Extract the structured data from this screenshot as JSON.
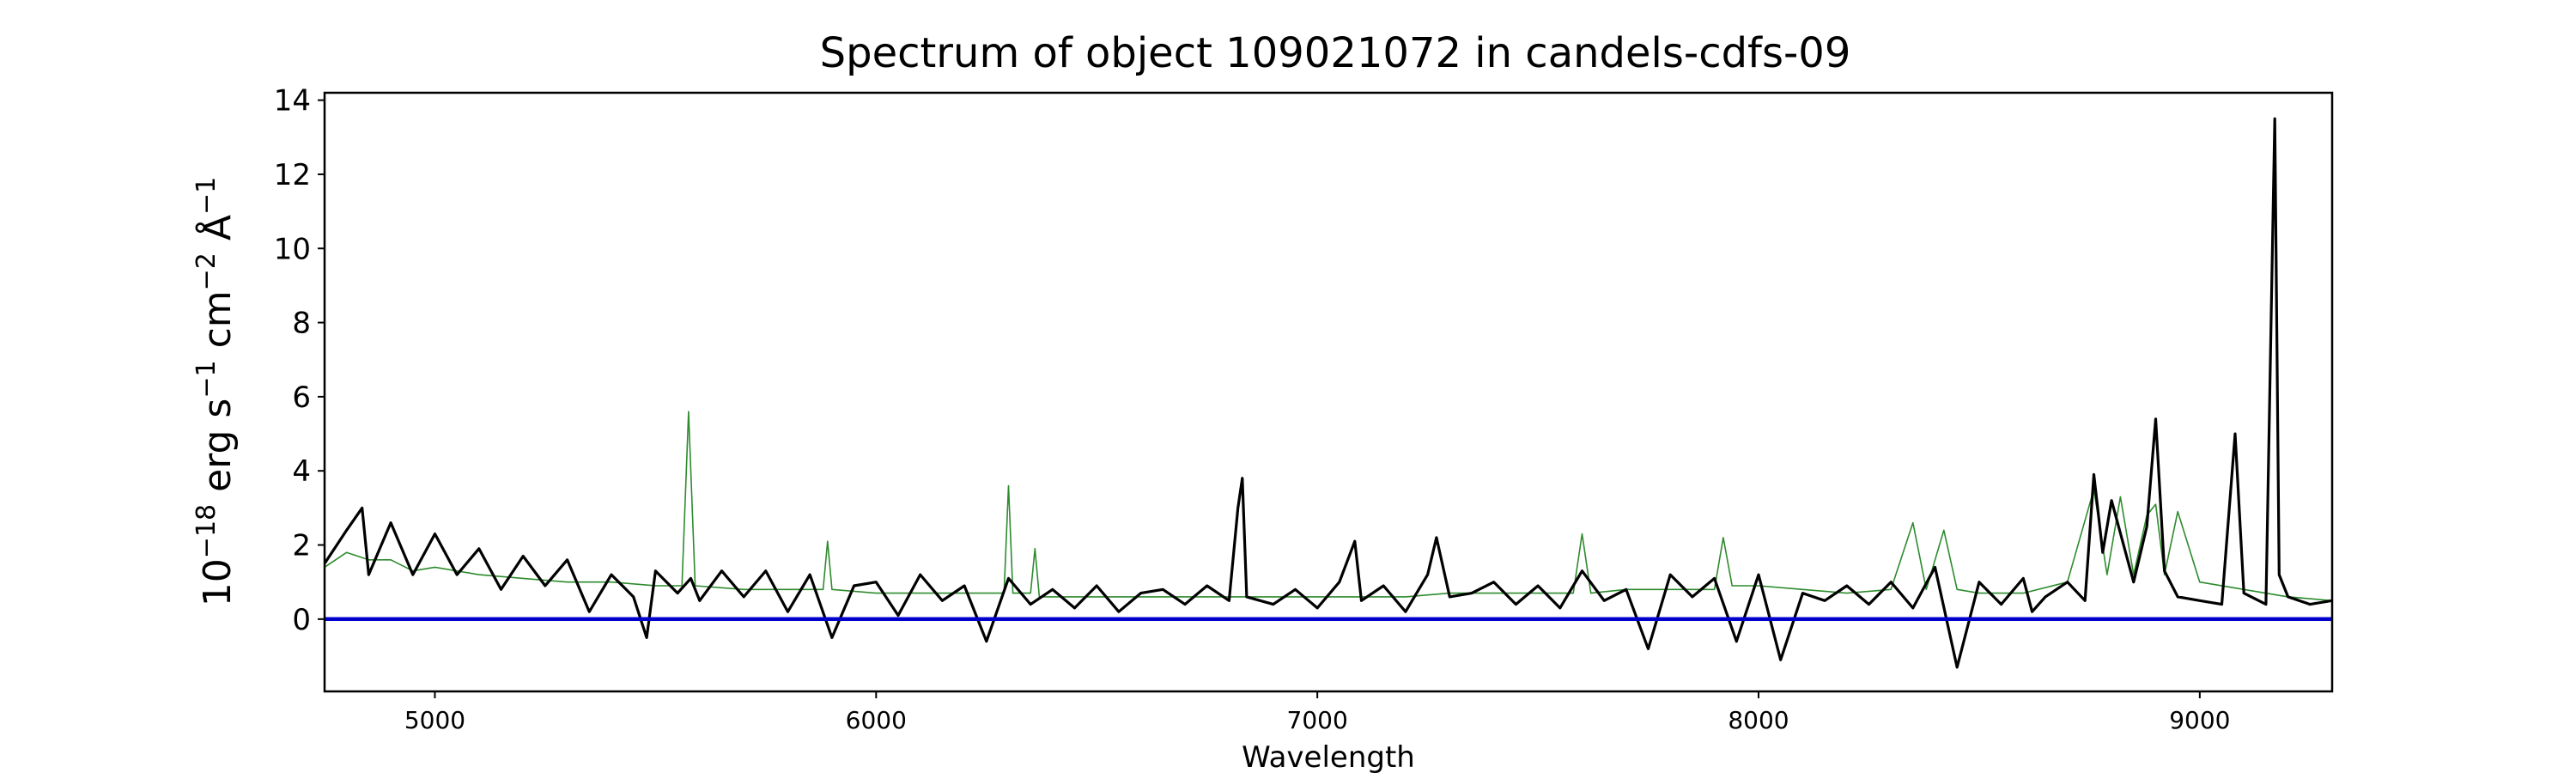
{
  "chart_data": {
    "type": "line",
    "title": "Spectrum of object 109021072 in candels-cdfs-09",
    "xlabel": "Wavelength",
    "ylabel": {
      "base": "10",
      "exp1": "−18",
      "erg": " erg s",
      "exp2": "−1",
      "cm": " cm",
      "exp3": "−2",
      "ang": " Å",
      "exp4": "−1"
    },
    "xlim": [
      4750,
      9300
    ],
    "ylim": [
      -1.95,
      14.2
    ],
    "x_ticks": [
      5000,
      6000,
      7000,
      8000,
      9000
    ],
    "y_ticks": [
      0,
      2,
      4,
      6,
      8,
      10,
      12,
      14
    ],
    "grid": false,
    "colors": {
      "spectrum": "#000000",
      "model": "#2e8b2e",
      "zero": "#0000cc"
    },
    "series": [
      {
        "key": "spectrum",
        "style": "black-thick",
        "x": [
          4750,
          4800,
          4835,
          4850,
          4900,
          4950,
          5000,
          5050,
          5100,
          5150,
          5200,
          5250,
          5300,
          5350,
          5400,
          5450,
          5480,
          5500,
          5550,
          5580,
          5600,
          5650,
          5700,
          5750,
          5800,
          5850,
          5900,
          5950,
          6000,
          6050,
          6100,
          6150,
          6200,
          6250,
          6300,
          6350,
          6400,
          6450,
          6500,
          6550,
          6600,
          6650,
          6700,
          6750,
          6800,
          6820,
          6830,
          6840,
          6900,
          6950,
          7000,
          7050,
          7085,
          7100,
          7150,
          7200,
          7250,
          7270,
          7300,
          7350,
          7400,
          7450,
          7500,
          7550,
          7600,
          7650,
          7700,
          7750,
          7800,
          7850,
          7900,
          7950,
          8000,
          8050,
          8100,
          8150,
          8200,
          8250,
          8300,
          8350,
          8400,
          8450,
          8500,
          8550,
          8600,
          8620,
          8650,
          8700,
          8740,
          8760,
          8780,
          8800,
          8850,
          8880,
          8900,
          8920,
          8950,
          9000,
          9050,
          9080,
          9100,
          9150,
          9170,
          9180,
          9200,
          9250,
          9300
        ],
        "y": [
          1.5,
          2.4,
          3.0,
          1.2,
          2.6,
          1.2,
          2.3,
          1.2,
          1.9,
          0.8,
          1.7,
          0.9,
          1.6,
          0.2,
          1.2,
          0.6,
          -0.5,
          1.3,
          0.7,
          1.1,
          0.5,
          1.3,
          0.6,
          1.3,
          0.2,
          1.2,
          -0.5,
          0.9,
          1.0,
          0.1,
          1.2,
          0.5,
          0.9,
          -0.6,
          1.1,
          0.4,
          0.8,
          0.3,
          0.9,
          0.2,
          0.7,
          0.8,
          0.4,
          0.9,
          0.5,
          3.0,
          3.8,
          0.6,
          0.4,
          0.8,
          0.3,
          1.0,
          2.1,
          0.5,
          0.9,
          0.2,
          1.2,
          2.2,
          0.6,
          0.7,
          1.0,
          0.4,
          0.9,
          0.3,
          1.3,
          0.5,
          0.8,
          -0.8,
          1.2,
          0.6,
          1.1,
          -0.6,
          1.2,
          -1.1,
          0.7,
          0.5,
          0.9,
          0.4,
          1.0,
          0.3,
          1.4,
          -1.3,
          1.0,
          0.4,
          1.1,
          0.2,
          0.6,
          1.0,
          0.5,
          3.9,
          1.8,
          3.2,
          1.0,
          2.5,
          5.4,
          1.3,
          0.6,
          0.5,
          0.4,
          5.0,
          0.7,
          0.4,
          13.5,
          1.2,
          0.6,
          0.4,
          0.5
        ]
      },
      {
        "key": "model",
        "style": "green-thin",
        "x": [
          4750,
          4800,
          4850,
          4900,
          4950,
          5000,
          5100,
          5200,
          5300,
          5400,
          5500,
          5560,
          5575,
          5590,
          5700,
          5800,
          5880,
          5890,
          5900,
          6000,
          6100,
          6200,
          6290,
          6300,
          6310,
          6350,
          6360,
          6370,
          6500,
          6600,
          6700,
          6800,
          6900,
          7000,
          7100,
          7200,
          7300,
          7400,
          7500,
          7580,
          7600,
          7620,
          7700,
          7800,
          7900,
          7920,
          7940,
          8000,
          8100,
          8200,
          8300,
          8350,
          8380,
          8420,
          8450,
          8500,
          8600,
          8700,
          8760,
          8790,
          8820,
          8850,
          8880,
          8900,
          8920,
          8950,
          9000,
          9100,
          9200,
          9300
        ],
        "y": [
          1.4,
          1.8,
          1.6,
          1.6,
          1.3,
          1.4,
          1.2,
          1.1,
          1.0,
          1.0,
          0.9,
          0.9,
          5.6,
          0.9,
          0.8,
          0.8,
          0.8,
          2.1,
          0.8,
          0.7,
          0.7,
          0.7,
          0.7,
          3.6,
          0.7,
          0.7,
          1.9,
          0.6,
          0.6,
          0.6,
          0.6,
          0.6,
          0.6,
          0.6,
          0.6,
          0.6,
          0.7,
          0.7,
          0.7,
          0.7,
          2.3,
          0.7,
          0.8,
          0.8,
          0.8,
          2.2,
          0.9,
          0.9,
          0.8,
          0.7,
          0.8,
          2.6,
          0.8,
          2.4,
          0.8,
          0.7,
          0.7,
          1.0,
          3.5,
          1.2,
          3.3,
          1.2,
          2.8,
          3.1,
          1.2,
          2.9,
          1.0,
          0.8,
          0.6,
          0.5
        ]
      },
      {
        "key": "zero",
        "style": "blue-flat",
        "x": [
          4750,
          9300
        ],
        "y": [
          0,
          0
        ]
      }
    ]
  }
}
